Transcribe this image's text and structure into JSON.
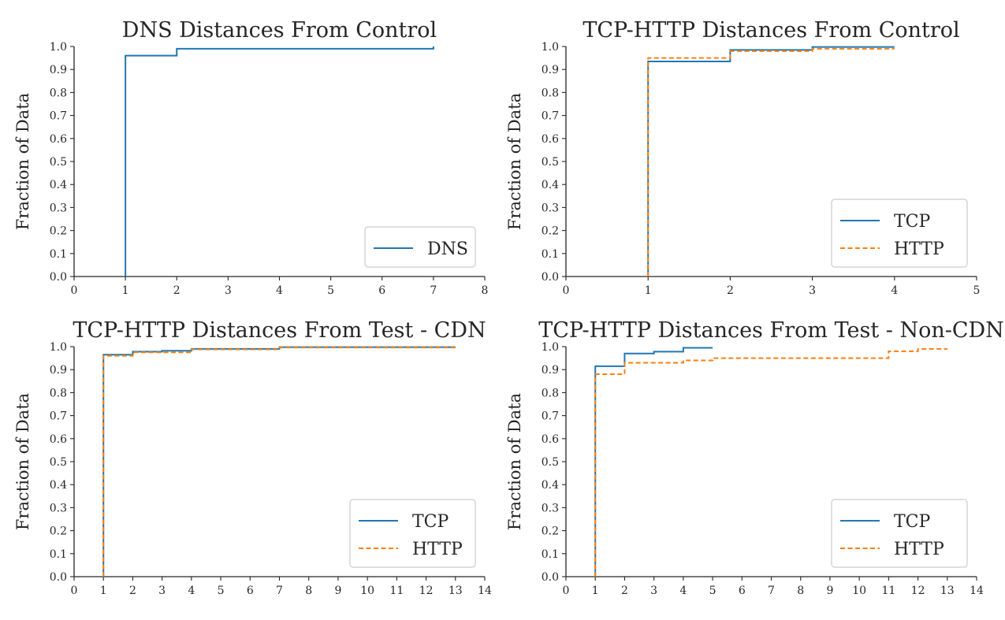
{
  "chart_data": [
    {
      "type": "line",
      "step": true,
      "title": "DNS Distances From Control",
      "xlabel": "",
      "ylabel": "Fraction of Data",
      "xlim": [
        0,
        8
      ],
      "ylim": [
        0,
        1
      ],
      "xticks": [
        0,
        1,
        2,
        3,
        4,
        5,
        6,
        7,
        8
      ],
      "yticks": [
        "0.0",
        "0.1",
        "0.2",
        "0.3",
        "0.4",
        "0.5",
        "0.6",
        "0.7",
        "0.8",
        "0.9",
        "1.0"
      ],
      "legend_position": "bottom-right",
      "series": [
        {
          "name": "DNS",
          "color": "#1f77b4",
          "dash": "solid",
          "x": [
            1,
            1,
            2,
            2,
            7,
            7
          ],
          "y": [
            0,
            0.96,
            0.96,
            0.99,
            0.99,
            1.0
          ]
        }
      ]
    },
    {
      "type": "line",
      "step": true,
      "title": "TCP-HTTP Distances From Control",
      "xlabel": "",
      "ylabel": "Fraction of Data",
      "xlim": [
        0,
        5
      ],
      "ylim": [
        0,
        1
      ],
      "xticks": [
        0,
        1,
        2,
        3,
        4,
        5
      ],
      "yticks": [
        "0.0",
        "0.1",
        "0.2",
        "0.3",
        "0.4",
        "0.5",
        "0.6",
        "0.7",
        "0.8",
        "0.9",
        "1.0"
      ],
      "legend_position": "bottom-right",
      "series": [
        {
          "name": "TCP",
          "color": "#1f77b4",
          "dash": "solid",
          "x": [
            1,
            1,
            2,
            2,
            3,
            3,
            4
          ],
          "y": [
            0,
            0.935,
            0.935,
            0.985,
            0.985,
            0.998,
            0.998
          ]
        },
        {
          "name": "HTTP",
          "color": "#ff7f0e",
          "dash": "dashed",
          "x": [
            1,
            1,
            2,
            2,
            3,
            3,
            4
          ],
          "y": [
            0,
            0.95,
            0.95,
            0.98,
            0.98,
            0.99,
            0.99
          ]
        }
      ]
    },
    {
      "type": "line",
      "step": true,
      "title": "TCP-HTTP Distances From Test - CDN",
      "xlabel": "",
      "ylabel": "Fraction of Data",
      "xlim": [
        0,
        14
      ],
      "ylim": [
        0,
        1
      ],
      "xticks": [
        0,
        1,
        2,
        3,
        4,
        5,
        6,
        7,
        8,
        9,
        10,
        11,
        12,
        13,
        14
      ],
      "yticks": [
        "0.0",
        "0.1",
        "0.2",
        "0.3",
        "0.4",
        "0.5",
        "0.6",
        "0.7",
        "0.8",
        "0.9",
        "1.0"
      ],
      "legend_position": "bottom-right",
      "series": [
        {
          "name": "TCP",
          "color": "#1f77b4",
          "dash": "solid",
          "x": [
            1,
            1,
            2,
            2,
            3,
            3,
            4,
            4,
            7,
            7,
            13
          ],
          "y": [
            0,
            0.965,
            0.965,
            0.978,
            0.978,
            0.982,
            0.982,
            0.99,
            0.99,
            0.998,
            0.998
          ]
        },
        {
          "name": "HTTP",
          "color": "#ff7f0e",
          "dash": "dashed",
          "x": [
            1,
            1,
            2,
            2,
            4,
            4,
            7,
            7,
            13
          ],
          "y": [
            0,
            0.96,
            0.96,
            0.975,
            0.975,
            0.988,
            0.988,
            0.996,
            0.996
          ]
        }
      ]
    },
    {
      "type": "line",
      "step": true,
      "title": "TCP-HTTP Distances From Test - Non-CDN",
      "xlabel": "",
      "ylabel": "Fraction of Data",
      "xlim": [
        0,
        14
      ],
      "ylim": [
        0,
        1
      ],
      "xticks": [
        0,
        1,
        2,
        3,
        4,
        5,
        6,
        7,
        8,
        9,
        10,
        11,
        12,
        13,
        14
      ],
      "yticks": [
        "0.0",
        "0.1",
        "0.2",
        "0.3",
        "0.4",
        "0.5",
        "0.6",
        "0.7",
        "0.8",
        "0.9",
        "1.0"
      ],
      "legend_position": "bottom-right",
      "series": [
        {
          "name": "TCP",
          "color": "#1f77b4",
          "dash": "solid",
          "x": [
            1,
            1,
            2,
            2,
            3,
            3,
            4,
            4,
            5
          ],
          "y": [
            0,
            0.915,
            0.915,
            0.97,
            0.97,
            0.978,
            0.978,
            0.995,
            0.995
          ]
        },
        {
          "name": "HTTP",
          "color": "#ff7f0e",
          "dash": "dashed",
          "x": [
            1,
            1,
            2,
            2,
            4,
            4,
            5,
            5,
            11,
            11,
            12,
            12,
            13
          ],
          "y": [
            0,
            0.88,
            0.88,
            0.93,
            0.93,
            0.94,
            0.94,
            0.95,
            0.95,
            0.98,
            0.98,
            0.99,
            0.99
          ]
        }
      ]
    }
  ]
}
